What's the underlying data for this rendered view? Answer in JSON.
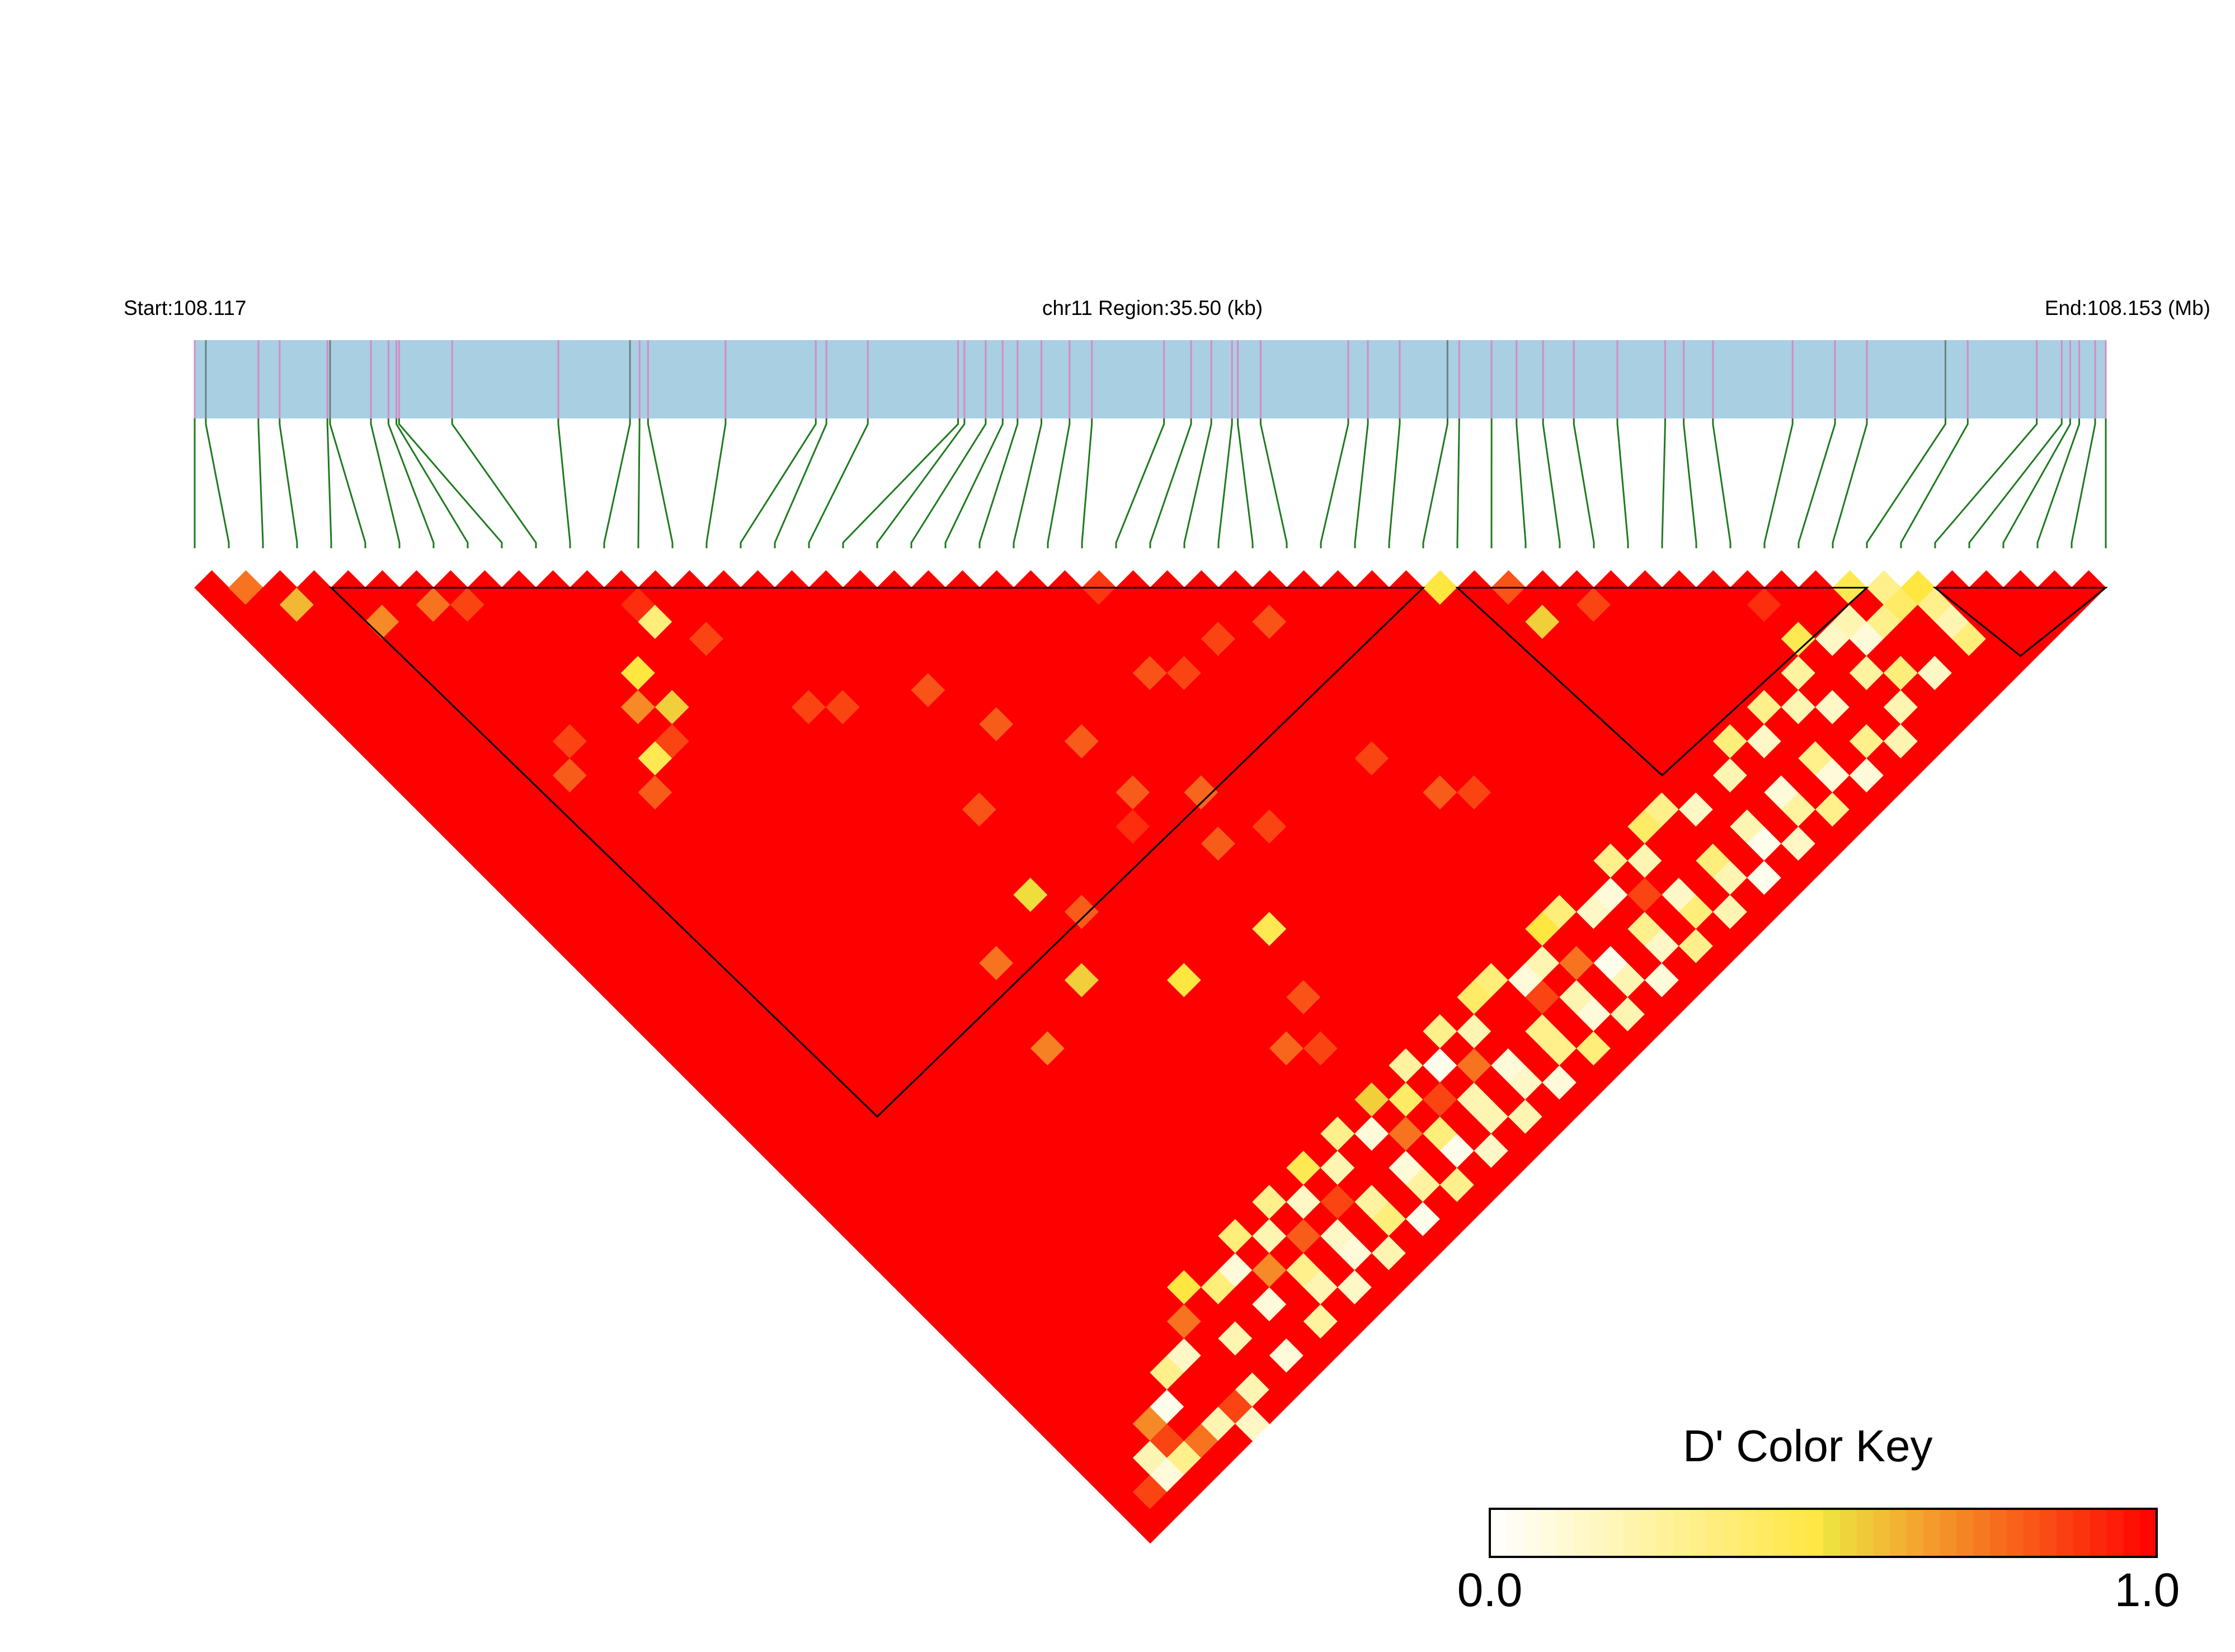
{
  "header": {
    "start_label": "Start:108.117",
    "region_label": "chr11 Region:35.50 (kb)",
    "end_label": "End:108.153 (Mb)"
  },
  "colors": {
    "gene_track": "#a8cfe2",
    "snp_marker_minor": "#d68ac7",
    "snp_marker_major": "#6e7f7f",
    "connector_line": "#1e7a1e",
    "block_outline": "#000000",
    "scale_low": "#ffffff",
    "scale_mid": "#eee640",
    "scale_high": "#ff0000"
  },
  "chart_data": {
    "type": "heatmap",
    "title": "",
    "chromosome": "chr11",
    "region_start_mb": 108.117,
    "region_end_mb": 108.153,
    "region_length_kb": 35.5,
    "n_snps": 57,
    "snp_positions_mb": [
      108.117,
      108.11721,
      108.1182,
      108.1186,
      108.1195,
      108.11955,
      108.12032,
      108.12065,
      108.1208,
      108.12085,
      108.12185,
      108.12385,
      108.1252,
      108.12538,
      108.12554,
      108.127,
      108.1287,
      108.1289,
      108.12968,
      108.13138,
      108.1315,
      108.1319,
      108.13222,
      108.1325,
      108.13295,
      108.13348,
      108.1339,
      108.13526,
      108.13577,
      108.13615,
      108.13654,
      108.13665,
      108.13708,
      108.13873,
      108.1391,
      108.1397,
      108.1406,
      108.14082,
      108.14143,
      108.1419,
      108.1424,
      108.14298,
      108.1438,
      108.1447,
      108.14505,
      108.1456,
      108.1471,
      108.1479,
      108.1485,
      108.14998,
      108.1504,
      108.1517,
      108.15217,
      108.15233,
      108.1525,
      108.1528,
      108.153
    ],
    "measure": "D'",
    "value_range": [
      0.0,
      1.0
    ],
    "default_value": 1.0,
    "haplotype_blocks": [
      {
        "first_snp": 4,
        "last_snp": 36
      },
      {
        "first_snp": 37,
        "last_snp": 49
      },
      {
        "first_snp": 51,
        "last_snp": 56
      }
    ],
    "cells": [
      {
        "i": 1,
        "j": 2,
        "v": 0.75
      },
      {
        "i": 2,
        "j": 4,
        "v": 0.6
      },
      {
        "i": 4,
        "j": 7,
        "v": 0.7
      },
      {
        "i": 6,
        "j": 8,
        "v": 0.75
      },
      {
        "i": 7,
        "j": 9,
        "v": 0.85
      },
      {
        "i": 12,
        "j": 14,
        "v": 0.9
      },
      {
        "i": 12,
        "j": 15,
        "v": 0.35
      },
      {
        "i": 10,
        "j": 18,
        "v": 0.55
      },
      {
        "i": 8,
        "j": 19,
        "v": 0.45
      },
      {
        "i": 9,
        "j": 19,
        "v": 0.85
      },
      {
        "i": 7,
        "j": 20,
        "v": 0.8
      },
      {
        "i": 14,
        "j": 22,
        "v": 0.85
      },
      {
        "i": 15,
        "j": 23,
        "v": 0.85
      },
      {
        "i": 18,
        "j": 25,
        "v": 0.82
      },
      {
        "i": 19,
        "j": 28,
        "v": 0.8
      },
      {
        "i": 16,
        "j": 30,
        "v": 0.82
      },
      {
        "i": 21,
        "j": 31,
        "v": 0.8
      },
      {
        "i": 21,
        "j": 34,
        "v": 0.8
      },
      {
        "i": 20,
        "j": 35,
        "v": 0.9
      },
      {
        "i": 26,
        "j": 32,
        "v": 0.85
      },
      {
        "i": 30,
        "j": 33,
        "v": 0.82
      },
      {
        "i": 28,
        "j": 32,
        "v": 0.85
      },
      {
        "i": 23,
        "j": 36,
        "v": 0.78
      },
      {
        "i": 22,
        "j": 38,
        "v": 0.8
      },
      {
        "i": 24,
        "j": 39,
        "v": 0.85
      },
      {
        "i": 30,
        "j": 43,
        "v": 0.8
      },
      {
        "i": 31,
        "j": 44,
        "v": 0.85
      },
      {
        "i": 38,
        "j": 39,
        "v": 0.82
      },
      {
        "i": 29,
        "j": 40,
        "v": 0.85
      },
      {
        "i": 17,
        "j": 41,
        "v": 0.5
      },
      {
        "i": 21,
        "j": 42,
        "v": 0.45
      },
      {
        "i": 15,
        "j": 34,
        "v": 0.52
      },
      {
        "i": 12,
        "j": 35,
        "v": 0.75
      },
      {
        "i": 16,
        "j": 36,
        "v": 0.8
      },
      {
        "i": 11,
        "j": 39,
        "v": 0.72
      },
      {
        "i": 14,
        "j": 38,
        "v": 0.55
      },
      {
        "i": 20,
        "j": 45,
        "v": 0.82
      },
      {
        "i": 18,
        "j": 46,
        "v": 0.78
      },
      {
        "i": 19,
        "j": 47,
        "v": 0.85
      },
      {
        "i": 10,
        "j": 16,
        "v": 0.5
      },
      {
        "i": 9,
        "j": 17,
        "v": 0.7
      },
      {
        "i": 13,
        "j": 17,
        "v": 0.85
      },
      {
        "i": 6,
        "j": 16,
        "v": 0.85
      },
      {
        "i": 5,
        "j": 17,
        "v": 0.8
      },
      {
        "i": 25,
        "j": 31,
        "v": 0.82
      },
      {
        "i": 26,
        "j": 27,
        "v": 0.88
      },
      {
        "i": 36,
        "j": 37,
        "v": 0.5
      },
      {
        "i": 38,
        "j": 41,
        "v": 0.55
      },
      {
        "i": 40,
        "j": 42,
        "v": 0.85
      },
      {
        "i": 45,
        "j": 47,
        "v": 0.9
      },
      {
        "i": 48,
        "j": 49,
        "v": 0.45
      },
      {
        "i": 49,
        "j": 50,
        "v": 0.3
      },
      {
        "i": 50,
        "j": 51,
        "v": 0.5
      },
      {
        "i": 47,
        "j": 50,
        "v": 0.2
      },
      {
        "i": 48,
        "j": 51,
        "v": 0.3
      },
      {
        "i": 46,
        "j": 50,
        "v": 0.15
      },
      {
        "i": 49,
        "j": 51,
        "v": 0.4
      },
      {
        "i": 50,
        "j": 52,
        "v": 0.3
      },
      {
        "i": 50,
        "j": 53,
        "v": 0.2
      },
      {
        "i": 50,
        "j": 54,
        "v": 0.35
      },
      {
        "i": 44,
        "j": 50,
        "v": 0.25
      },
      {
        "i": 45,
        "j": 49,
        "v": 0.45
      },
      {
        "i": 43,
        "j": 51,
        "v": 0.2
      },
      {
        "i": 42,
        "j": 50,
        "v": 0.3
      },
      {
        "i": 47,
        "j": 51,
        "v": 0.1
      },
      {
        "i": 41,
        "j": 51,
        "v": 0.15
      },
      {
        "i": 40,
        "j": 50,
        "v": 0.35
      },
      {
        "i": 39,
        "j": 51,
        "v": 0.2
      },
      {
        "i": 36,
        "j": 50,
        "v": 0.3
      },
      {
        "i": 37,
        "j": 51,
        "v": 0.15
      },
      {
        "i": 35,
        "j": 50,
        "v": 0.4
      },
      {
        "i": 34,
        "j": 51,
        "v": 0.2
      },
      {
        "i": 33,
        "j": 50,
        "v": 0.3
      },
      {
        "i": 32,
        "j": 51,
        "v": 0.1
      },
      {
        "i": 30,
        "j": 50,
        "v": 0.35
      },
      {
        "i": 31,
        "j": 51,
        "v": 0.15
      },
      {
        "i": 29,
        "j": 50,
        "v": 0.5
      },
      {
        "i": 28,
        "j": 51,
        "v": 0.2
      },
      {
        "i": 26,
        "j": 50,
        "v": 0.35
      },
      {
        "i": 27,
        "j": 51,
        "v": 0.1
      },
      {
        "i": 25,
        "j": 50,
        "v": 0.4
      },
      {
        "i": 24,
        "j": 51,
        "v": 0.2
      },
      {
        "i": 23,
        "j": 50,
        "v": 0.3
      },
      {
        "i": 22,
        "j": 51,
        "v": 0.05
      },
      {
        "i": 21,
        "j": 50,
        "v": 0.25
      },
      {
        "i": 20,
        "j": 51,
        "v": 0.4
      },
      {
        "i": 19,
        "j": 50,
        "v": 0.55
      },
      {
        "i": 18,
        "j": 51,
        "v": 0.1
      },
      {
        "i": 17,
        "j": 50,
        "v": 0.3
      },
      {
        "i": 16,
        "j": 51,
        "v": 0.2
      },
      {
        "i": 15,
        "j": 50,
        "v": 0.45
      },
      {
        "i": 14,
        "j": 51,
        "v": 0.15
      },
      {
        "i": 13,
        "j": 50,
        "v": 0.3
      },
      {
        "i": 12,
        "j": 51,
        "v": 0.2
      },
      {
        "i": 11,
        "j": 50,
        "v": 0.35
      },
      {
        "i": 10,
        "j": 51,
        "v": 0.1
      },
      {
        "i": 46,
        "j": 52,
        "v": 0.25
      },
      {
        "i": 44,
        "j": 52,
        "v": 0.15
      },
      {
        "i": 42,
        "j": 53,
        "v": 0.3
      },
      {
        "i": 40,
        "j": 53,
        "v": 0.1
      },
      {
        "i": 38,
        "j": 53,
        "v": 0.2
      },
      {
        "i": 36,
        "j": 53,
        "v": 0.35
      },
      {
        "i": 34,
        "j": 53,
        "v": 0.15
      },
      {
        "i": 32,
        "j": 53,
        "v": 0.3
      },
      {
        "i": 30,
        "j": 53,
        "v": 0.05
      },
      {
        "i": 28,
        "j": 53,
        "v": 0.2
      },
      {
        "i": 26,
        "j": 53,
        "v": 0.3
      },
      {
        "i": 24,
        "j": 53,
        "v": 0.1
      },
      {
        "i": 22,
        "j": 53,
        "v": 0.2
      },
      {
        "i": 20,
        "j": 53,
        "v": 0.35
      },
      {
        "i": 18,
        "j": 53,
        "v": 0.1
      },
      {
        "i": 16,
        "j": 53,
        "v": 0.25
      },
      {
        "i": 14,
        "j": 53,
        "v": 0.15
      },
      {
        "i": 12,
        "j": 53,
        "v": 0.3
      },
      {
        "i": 10,
        "j": 53,
        "v": 0.1
      },
      {
        "i": 8,
        "j": 53,
        "v": 0.2
      },
      {
        "i": 45,
        "j": 55,
        "v": 0.2
      },
      {
        "i": 43,
        "j": 55,
        "v": 0.1
      },
      {
        "i": 41,
        "j": 55,
        "v": 0.3
      },
      {
        "i": 39,
        "j": 55,
        "v": 0.15
      },
      {
        "i": 37,
        "j": 55,
        "v": 0.05
      },
      {
        "i": 35,
        "j": 55,
        "v": 0.2
      },
      {
        "i": 33,
        "j": 55,
        "v": 0.3
      },
      {
        "i": 31,
        "j": 55,
        "v": 0.1
      },
      {
        "i": 29,
        "j": 55,
        "v": 0.2
      },
      {
        "i": 27,
        "j": 55,
        "v": 0.35
      },
      {
        "i": 25,
        "j": 55,
        "v": 0.1
      },
      {
        "i": 23,
        "j": 55,
        "v": 0.2
      },
      {
        "i": 21,
        "j": 55,
        "v": 0.15
      },
      {
        "i": 19,
        "j": 55,
        "v": 0.3
      },
      {
        "i": 17,
        "j": 55,
        "v": 0.05
      },
      {
        "i": 15,
        "j": 55,
        "v": 0.2
      },
      {
        "i": 13,
        "j": 55,
        "v": 0.15
      },
      {
        "i": 11,
        "j": 55,
        "v": 0.25
      },
      {
        "i": 9,
        "j": 55,
        "v": 0.1
      },
      {
        "i": 7,
        "j": 55,
        "v": 0.2
      },
      {
        "i": 48,
        "j": 54,
        "v": 0.15
      },
      {
        "i": 47,
        "j": 53,
        "v": 0.35
      },
      {
        "i": 46,
        "j": 54,
        "v": 0.2
      },
      {
        "i": 44,
        "j": 54,
        "v": 0.3
      },
      {
        "i": 42,
        "j": 54,
        "v": 0.1
      },
      {
        "i": 40,
        "j": 54,
        "v": 0.25
      },
      {
        "i": 38,
        "j": 54,
        "v": 0.05
      },
      {
        "i": 36,
        "j": 54,
        "v": 0.2
      },
      {
        "i": 34,
        "j": 54,
        "v": 0.35
      },
      {
        "i": 32,
        "j": 54,
        "v": 0.15
      },
      {
        "i": 30,
        "j": 54,
        "v": 0.2
      },
      {
        "i": 28,
        "j": 54,
        "v": 0.1
      },
      {
        "i": 26,
        "j": 54,
        "v": 0.3
      },
      {
        "i": 24,
        "j": 54,
        "v": 0.15
      },
      {
        "i": 22,
        "j": 54,
        "v": 0.2
      },
      {
        "i": 20,
        "j": 54,
        "v": 0.05
      },
      {
        "i": 18,
        "j": 54,
        "v": 0.25
      },
      {
        "i": 16,
        "j": 54,
        "v": 0.35
      },
      {
        "i": 14,
        "j": 54,
        "v": 0.1
      },
      {
        "i": 12,
        "j": 54,
        "v": 0.2
      },
      {
        "i": 8,
        "j": 50,
        "v": 0.5
      },
      {
        "i": 9,
        "j": 51,
        "v": 0.35
      },
      {
        "i": 7,
        "j": 51,
        "v": 0.75
      },
      {
        "i": 6,
        "j": 52,
        "v": 0.15
      },
      {
        "i": 5,
        "j": 52,
        "v": 0.3
      },
      {
        "i": 4,
        "j": 53,
        "v": 0.05
      },
      {
        "i": 3,
        "j": 53,
        "v": 0.7
      },
      {
        "i": 3,
        "j": 54,
        "v": 0.85
      },
      {
        "i": 2,
        "j": 54,
        "v": 0.2
      },
      {
        "i": 1,
        "j": 55,
        "v": 0.85
      },
      {
        "i": 2,
        "j": 55,
        "v": 0.1
      },
      {
        "i": 3,
        "j": 55,
        "v": 0.3
      },
      {
        "i": 4,
        "j": 55,
        "v": 0.75
      },
      {
        "i": 0,
        "j": 56,
        "v": 1.0
      },
      {
        "i": 5,
        "j": 55,
        "v": 0.2
      },
      {
        "i": 6,
        "j": 55,
        "v": 0.85
      },
      {
        "i": 6,
        "j": 56,
        "v": 0.15
      },
      {
        "i": 19,
        "j": 52,
        "v": 0.75
      },
      {
        "i": 21,
        "j": 52,
        "v": 0.85
      },
      {
        "i": 23,
        "j": 52,
        "v": 0.75
      },
      {
        "i": 27,
        "j": 52,
        "v": 0.85
      },
      {
        "i": 29,
        "j": 52,
        "v": 0.75
      },
      {
        "i": 33,
        "j": 52,
        "v": 0.85
      },
      {
        "i": 13,
        "j": 52,
        "v": 0.8
      },
      {
        "i": 15,
        "j": 52,
        "v": 0.85
      },
      {
        "i": 11,
        "j": 52,
        "v": 0.7
      }
    ]
  },
  "color_key": {
    "title": "D' Color Key",
    "min_label": "0.0",
    "max_label": "1.0"
  }
}
